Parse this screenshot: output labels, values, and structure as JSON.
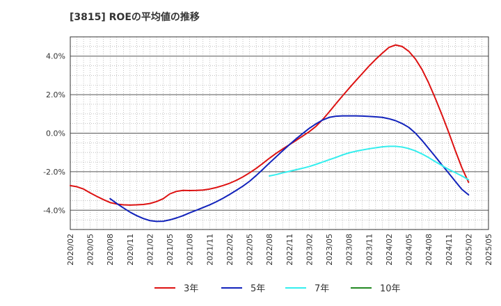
{
  "chart_data": {
    "type": "line",
    "title": "[3815]  ROEの平均値の推移",
    "xlabel": "",
    "ylabel": "",
    "ylim": [
      -5,
      5
    ],
    "y_ticks": [
      {
        "v": 4,
        "label": "4.0%"
      },
      {
        "v": 2,
        "label": "2.0%"
      },
      {
        "v": 0,
        "label": "0.0%"
      },
      {
        "v": -2,
        "label": "-2.0%"
      },
      {
        "v": -4,
        "label": "-4.0%"
      }
    ],
    "x_tick_labels": [
      "2020/02",
      "2020/05",
      "2020/08",
      "2020/11",
      "2021/02",
      "2021/05",
      "2021/08",
      "2021/11",
      "2022/02",
      "2022/05",
      "2022/08",
      "2022/11",
      "2023/02",
      "2023/05",
      "2023/08",
      "2023/11",
      "2024/02",
      "2024/05",
      "2024/08",
      "2024/11",
      "2025/02",
      "2025/05"
    ],
    "x_start": "2020/02",
    "grid": true,
    "legend_position": "bottom",
    "series": [
      {
        "name": "3年",
        "color": "#dd1111",
        "points": [
          [
            "2020/02",
            -2.72
          ],
          [
            "2020/03",
            -2.78
          ],
          [
            "2020/04",
            -2.9
          ],
          [
            "2020/05",
            -3.1
          ],
          [
            "2020/06",
            -3.28
          ],
          [
            "2020/07",
            -3.45
          ],
          [
            "2020/08",
            -3.6
          ],
          [
            "2020/09",
            -3.68
          ],
          [
            "2020/10",
            -3.72
          ],
          [
            "2020/11",
            -3.73
          ],
          [
            "2020/12",
            -3.72
          ],
          [
            "2021/01",
            -3.7
          ],
          [
            "2021/02",
            -3.65
          ],
          [
            "2021/03",
            -3.55
          ],
          [
            "2021/04",
            -3.4
          ],
          [
            "2021/05",
            -3.15
          ],
          [
            "2021/06",
            -3.02
          ],
          [
            "2021/07",
            -2.97
          ],
          [
            "2021/08",
            -2.98
          ],
          [
            "2021/09",
            -2.97
          ],
          [
            "2021/10",
            -2.95
          ],
          [
            "2021/11",
            -2.9
          ],
          [
            "2021/12",
            -2.82
          ],
          [
            "2022/01",
            -2.72
          ],
          [
            "2022/02",
            -2.6
          ],
          [
            "2022/03",
            -2.45
          ],
          [
            "2022/04",
            -2.27
          ],
          [
            "2022/05",
            -2.06
          ],
          [
            "2022/06",
            -1.83
          ],
          [
            "2022/07",
            -1.57
          ],
          [
            "2022/08",
            -1.3
          ],
          [
            "2022/09",
            -1.05
          ],
          [
            "2022/10",
            -0.82
          ],
          [
            "2022/11",
            -0.6
          ],
          [
            "2022/12",
            -0.38
          ],
          [
            "2023/01",
            -0.15
          ],
          [
            "2023/02",
            0.08
          ],
          [
            "2023/03",
            0.35
          ],
          [
            "2023/04",
            0.7
          ],
          [
            "2023/05",
            1.1
          ],
          [
            "2023/06",
            1.52
          ],
          [
            "2023/07",
            1.93
          ],
          [
            "2023/08",
            2.33
          ],
          [
            "2023/09",
            2.72
          ],
          [
            "2023/10",
            3.1
          ],
          [
            "2023/11",
            3.48
          ],
          [
            "2023/12",
            3.83
          ],
          [
            "2024/01",
            4.15
          ],
          [
            "2024/02",
            4.45
          ],
          [
            "2024/03",
            4.58
          ],
          [
            "2024/04",
            4.5
          ],
          [
            "2024/05",
            4.25
          ],
          [
            "2024/06",
            3.85
          ],
          [
            "2024/07",
            3.3
          ],
          [
            "2024/08",
            2.6
          ],
          [
            "2024/09",
            1.8
          ],
          [
            "2024/10",
            0.95
          ],
          [
            "2024/11",
            0.05
          ],
          [
            "2024/12",
            -0.9
          ],
          [
            "2025/01",
            -1.8
          ],
          [
            "2025/02",
            -2.55
          ]
        ]
      },
      {
        "name": "5年",
        "color": "#1122bb",
        "points": [
          [
            "2020/08",
            -3.4
          ],
          [
            "2020/09",
            -3.65
          ],
          [
            "2020/10",
            -3.88
          ],
          [
            "2020/11",
            -4.1
          ],
          [
            "2020/12",
            -4.28
          ],
          [
            "2021/01",
            -4.43
          ],
          [
            "2021/02",
            -4.54
          ],
          [
            "2021/03",
            -4.58
          ],
          [
            "2021/04",
            -4.57
          ],
          [
            "2021/05",
            -4.5
          ],
          [
            "2021/06",
            -4.4
          ],
          [
            "2021/07",
            -4.28
          ],
          [
            "2021/08",
            -4.13
          ],
          [
            "2021/09",
            -4.0
          ],
          [
            "2021/10",
            -3.86
          ],
          [
            "2021/11",
            -3.72
          ],
          [
            "2021/12",
            -3.56
          ],
          [
            "2022/01",
            -3.38
          ],
          [
            "2022/02",
            -3.18
          ],
          [
            "2022/03",
            -2.97
          ],
          [
            "2022/04",
            -2.75
          ],
          [
            "2022/05",
            -2.5
          ],
          [
            "2022/06",
            -2.2
          ],
          [
            "2022/07",
            -1.88
          ],
          [
            "2022/08",
            -1.55
          ],
          [
            "2022/09",
            -1.23
          ],
          [
            "2022/10",
            -0.91
          ],
          [
            "2022/11",
            -0.6
          ],
          [
            "2022/12",
            -0.3
          ],
          [
            "2023/01",
            -0.02
          ],
          [
            "2023/02",
            0.25
          ],
          [
            "2023/03",
            0.48
          ],
          [
            "2023/04",
            0.68
          ],
          [
            "2023/05",
            0.82
          ],
          [
            "2023/06",
            0.88
          ],
          [
            "2023/07",
            0.9
          ],
          [
            "2023/08",
            0.9
          ],
          [
            "2023/09",
            0.9
          ],
          [
            "2023/10",
            0.89
          ],
          [
            "2023/11",
            0.87
          ],
          [
            "2023/12",
            0.85
          ],
          [
            "2024/01",
            0.82
          ],
          [
            "2024/02",
            0.75
          ],
          [
            "2024/03",
            0.65
          ],
          [
            "2024/04",
            0.5
          ],
          [
            "2024/05",
            0.3
          ],
          [
            "2024/06",
            0.0
          ],
          [
            "2024/07",
            -0.38
          ],
          [
            "2024/08",
            -0.8
          ],
          [
            "2024/09",
            -1.22
          ],
          [
            "2024/10",
            -1.65
          ],
          [
            "2024/11",
            -2.07
          ],
          [
            "2024/12",
            -2.5
          ],
          [
            "2025/01",
            -2.92
          ],
          [
            "2025/02",
            -3.2
          ]
        ]
      },
      {
        "name": "7年",
        "color": "#33eeee",
        "points": [
          [
            "2022/08",
            -2.22
          ],
          [
            "2022/09",
            -2.15
          ],
          [
            "2022/10",
            -2.06
          ],
          [
            "2022/11",
            -1.98
          ],
          [
            "2022/12",
            -1.9
          ],
          [
            "2023/01",
            -1.82
          ],
          [
            "2023/02",
            -1.73
          ],
          [
            "2023/03",
            -1.62
          ],
          [
            "2023/04",
            -1.5
          ],
          [
            "2023/05",
            -1.38
          ],
          [
            "2023/06",
            -1.26
          ],
          [
            "2023/07",
            -1.13
          ],
          [
            "2023/08",
            -1.02
          ],
          [
            "2023/09",
            -0.94
          ],
          [
            "2023/10",
            -0.87
          ],
          [
            "2023/11",
            -0.81
          ],
          [
            "2023/12",
            -0.76
          ],
          [
            "2024/01",
            -0.71
          ],
          [
            "2024/02",
            -0.68
          ],
          [
            "2024/03",
            -0.68
          ],
          [
            "2024/04",
            -0.72
          ],
          [
            "2024/05",
            -0.8
          ],
          [
            "2024/06",
            -0.92
          ],
          [
            "2024/07",
            -1.08
          ],
          [
            "2024/08",
            -1.27
          ],
          [
            "2024/09",
            -1.48
          ],
          [
            "2024/10",
            -1.68
          ],
          [
            "2024/11",
            -1.88
          ],
          [
            "2024/12",
            -2.05
          ],
          [
            "2025/01",
            -2.22
          ],
          [
            "2025/02",
            -2.42
          ]
        ]
      },
      {
        "name": "10年",
        "color": "#228822",
        "points": []
      }
    ]
  }
}
